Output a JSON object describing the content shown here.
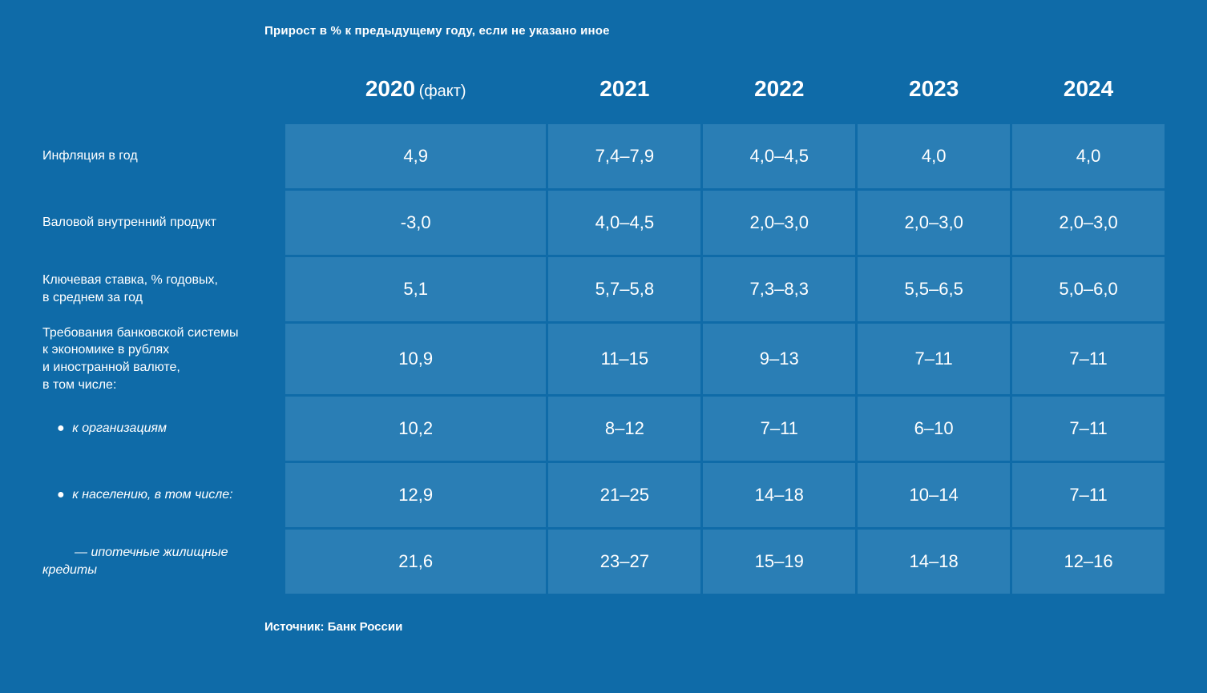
{
  "subtitle": "Прирост в % к предыдущему году, если не указано иное",
  "source": "Источник: Банк России",
  "colors": {
    "background": "#0f6ba8",
    "cell": "#2a7eb5",
    "text": "#ffffff"
  },
  "table": {
    "type": "table",
    "columns": [
      {
        "year": "2020",
        "note": "(факт)"
      },
      {
        "year": "2021",
        "note": ""
      },
      {
        "year": "2022",
        "note": ""
      },
      {
        "year": "2023",
        "note": ""
      },
      {
        "year": "2024",
        "note": ""
      }
    ],
    "rows": [
      {
        "label": "Инфляция в год",
        "indent": 0,
        "tall": false,
        "cells": [
          "4,9",
          "7,4–7,9",
          "4,0–4,5",
          "4,0",
          "4,0"
        ]
      },
      {
        "label": "Валовой внутренний продукт",
        "indent": 0,
        "tall": false,
        "cells": [
          "-3,0",
          "4,0–4,5",
          "2,0–3,0",
          "2,0–3,0",
          "2,0–3,0"
        ]
      },
      {
        "label": "Ключевая ставка, % годовых,\nв среднем за год",
        "indent": 0,
        "tall": false,
        "cells": [
          "5,1",
          "5,7–5,8",
          "7,3–8,3",
          "5,5–6,5",
          "5,0–6,0"
        ]
      },
      {
        "label": "Требования банковской системы\nк экономике в рублях\nи иностранной валюте,\nв том числе:",
        "indent": 0,
        "tall": true,
        "cells": [
          "10,9",
          "11–15",
          "9–13",
          "7–11",
          "7–11"
        ]
      },
      {
        "label": "к организациям",
        "indent": 1,
        "tall": false,
        "cells": [
          "10,2",
          "8–12",
          "7–11",
          "6–10",
          "7–11"
        ]
      },
      {
        "label": "к населению, в том числе:",
        "indent": 1,
        "tall": false,
        "cells": [
          "12,9",
          "21–25",
          "14–18",
          "10–14",
          "7–11"
        ]
      },
      {
        "label": "ипотечные жилищные\nкредиты",
        "indent": 2,
        "tall": false,
        "cells": [
          "21,6",
          "23–27",
          "15–19",
          "14–18",
          "12–16"
        ]
      }
    ]
  }
}
